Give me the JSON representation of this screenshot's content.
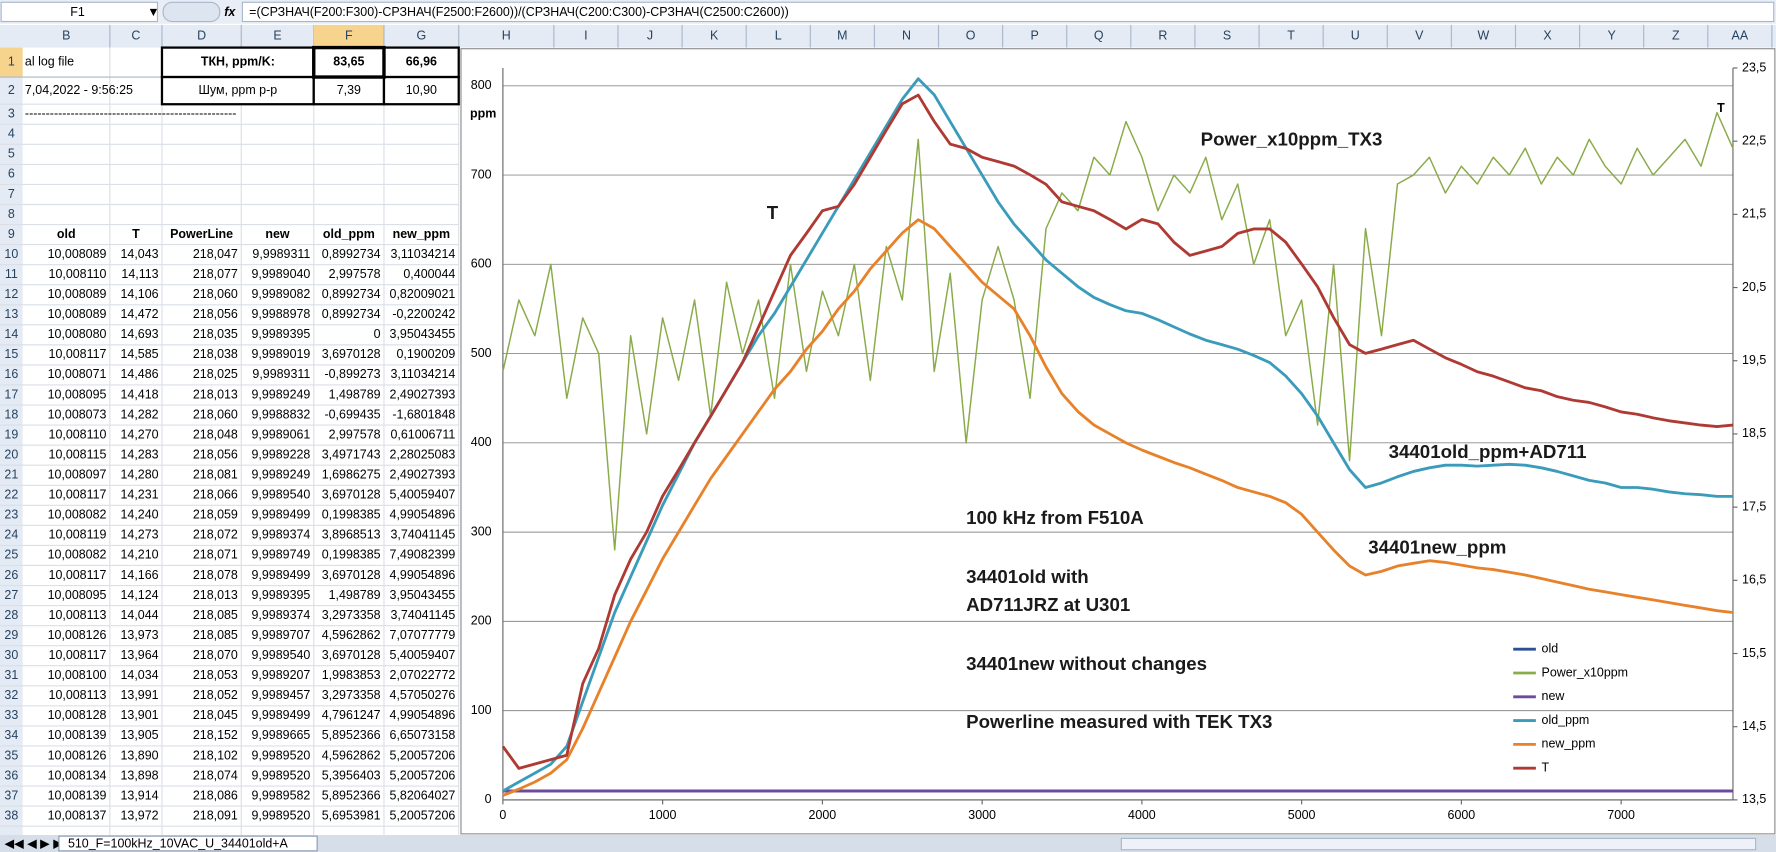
{
  "formula_bar": {
    "name_box": "F1",
    "formula": "=(СРЗНАЧ(F200:F300)-СРЗНАЧ(F2500:F2600))/(СРЗНАЧ(C200:C300)-СРЗНАЧ(C2500:C2600))"
  },
  "columns": [
    "B",
    "C",
    "D",
    "E",
    "F",
    "G",
    "H",
    "I",
    "J",
    "K",
    "L",
    "M",
    "N",
    "O",
    "P",
    "Q",
    "R",
    "S",
    "T",
    "U",
    "V",
    "W",
    "X",
    "Y",
    "Z",
    "AA"
  ],
  "row_numbers": [
    1,
    2,
    3,
    4,
    5,
    6,
    7,
    8,
    9,
    10,
    11,
    12,
    13,
    14,
    15,
    16,
    17,
    18,
    19,
    20,
    21,
    22,
    23,
    24,
    25,
    26,
    27,
    28,
    29,
    30,
    31,
    32,
    33,
    34,
    35,
    36,
    37,
    38
  ],
  "sheet": {
    "a1": "al log file",
    "a2": "7,04,2022 - 9:56:25",
    "a3": "---------------------------------------------------",
    "tkn_label": "ТКН, ppm/K:",
    "tkn": [
      "83,65",
      "66,96"
    ],
    "noise_label": "Шум, ppm p-p",
    "noise": [
      "7,39",
      "10,90"
    ],
    "headers": [
      "old",
      "T",
      "PowerLine",
      "new",
      "old_ppm",
      "new_ppm"
    ],
    "rows": [
      [
        "10,008089",
        "14,043",
        "218,047",
        "9,9989311",
        "0,8992734",
        "3,11034214"
      ],
      [
        "10,008110",
        "14,113",
        "218,077",
        "9,9989040",
        "2,997578",
        "0,400044"
      ],
      [
        "10,008089",
        "14,106",
        "218,060",
        "9,9989082",
        "0,8992734",
        "0,82009021"
      ],
      [
        "10,008089",
        "14,472",
        "218,056",
        "9,9988978",
        "0,8992734",
        "-0,2200242"
      ],
      [
        "10,008080",
        "14,693",
        "218,035",
        "9,9989395",
        "0",
        "3,95043455"
      ],
      [
        "10,008117",
        "14,585",
        "218,038",
        "9,9989019",
        "3,6970128",
        "0,1900209"
      ],
      [
        "10,008071",
        "14,486",
        "218,025",
        "9,9989311",
        "-0,899273",
        "3,11034214"
      ],
      [
        "10,008095",
        "14,418",
        "218,013",
        "9,9989249",
        "1,498789",
        "2,49027393"
      ],
      [
        "10,008073",
        "14,282",
        "218,060",
        "9,9988832",
        "-0,699435",
        "-1,6801848"
      ],
      [
        "10,008110",
        "14,270",
        "218,048",
        "9,9989061",
        "2,997578",
        "0,61006711"
      ],
      [
        "10,008115",
        "14,283",
        "218,056",
        "9,9989228",
        "3,4971743",
        "2,28025083"
      ],
      [
        "10,008097",
        "14,280",
        "218,081",
        "9,9989249",
        "1,6986275",
        "2,49027393"
      ],
      [
        "10,008117",
        "14,231",
        "218,066",
        "9,9989540",
        "3,6970128",
        "5,40059407"
      ],
      [
        "10,008082",
        "14,240",
        "218,059",
        "9,9989499",
        "0,1998385",
        "4,99054896"
      ],
      [
        "10,008119",
        "14,273",
        "218,072",
        "9,9989374",
        "3,8968513",
        "3,74041145"
      ],
      [
        "10,008082",
        "14,210",
        "218,071",
        "9,9989749",
        "0,1998385",
        "7,49082399"
      ],
      [
        "10,008117",
        "14,166",
        "218,078",
        "9,9989499",
        "3,6970128",
        "4,99054896"
      ],
      [
        "10,008095",
        "14,124",
        "218,013",
        "9,9989395",
        "1,498789",
        "3,95043455"
      ],
      [
        "10,008113",
        "14,044",
        "218,085",
        "9,9989374",
        "3,2973358",
        "3,74041145"
      ],
      [
        "10,008126",
        "13,973",
        "218,085",
        "9,9989707",
        "4,5962862",
        "7,07077779"
      ],
      [
        "10,008117",
        "13,964",
        "218,070",
        "9,9989540",
        "3,6970128",
        "5,40059407"
      ],
      [
        "10,008100",
        "14,034",
        "218,053",
        "9,9989207",
        "1,9983853",
        "2,07022772"
      ],
      [
        "10,008113",
        "13,991",
        "218,052",
        "9,9989457",
        "3,2973358",
        "4,57050276"
      ],
      [
        "10,008128",
        "13,901",
        "218,045",
        "9,9989499",
        "4,7961247",
        "4,99054896"
      ],
      [
        "10,008139",
        "13,905",
        "218,152",
        "9,9989665",
        "5,8952366",
        "6,65073158"
      ],
      [
        "10,008126",
        "13,890",
        "218,102",
        "9,9989520",
        "4,5962862",
        "5,20057206"
      ],
      [
        "10,008134",
        "13,898",
        "218,074",
        "9,9989520",
        "5,3956403",
        "5,20057206"
      ],
      [
        "10,008139",
        "13,914",
        "218,086",
        "9,9989582",
        "5,8952366",
        "5,82064027"
      ],
      [
        "10,008137",
        "13,972",
        "218,091",
        "9,9989520",
        "5,6953981",
        "5,20057206"
      ]
    ]
  },
  "sheet_tab": "510_F=100kHz_10VAC_U_34401old+A",
  "chart_data": {
    "type": "line",
    "y_label": "ppm",
    "y2_label": "T",
    "legend": "lower right",
    "grid": true,
    "annotations": [
      "Power_x10ppm_TX3",
      "T",
      "34401old_ppm+AD711",
      "34401new_ppm",
      "100 kHz from F510A",
      "34401old with",
      " AD711JRZ at U301",
      "34401new without changes",
      "Powerline measured with TEK TX3"
    ],
    "xlim": [
      0,
      7700
    ],
    "xticks": [
      0,
      1000,
      2000,
      3000,
      4000,
      5000,
      6000,
      7000
    ],
    "ylim": [
      0,
      820
    ],
    "yticks": [
      0,
      100,
      200,
      300,
      400,
      500,
      600,
      700,
      800
    ],
    "y2lim": [
      13.5,
      23.5
    ],
    "y2ticks": [
      {
        "value": 13.5,
        "label": "13,5"
      },
      {
        "value": 14.5,
        "label": "14,5"
      },
      {
        "value": 15.5,
        "label": "15,5"
      },
      {
        "value": 16.5,
        "label": "16,5"
      },
      {
        "value": 17.5,
        "label": "17,5"
      },
      {
        "value": 18.5,
        "label": "18,5"
      },
      {
        "value": 19.5,
        "label": "19,5"
      },
      {
        "value": 20.5,
        "label": "20,5"
      },
      {
        "value": 21.5,
        "label": "21,5"
      },
      {
        "value": 22.5,
        "label": "22,5"
      },
      {
        "value": 23.5,
        "label": "23,5"
      }
    ],
    "x": [
      0,
      100,
      200,
      300,
      400,
      500,
      600,
      700,
      800,
      900,
      1000,
      1100,
      1200,
      1300,
      1400,
      1500,
      1600,
      1700,
      1800,
      1900,
      2000,
      2100,
      2200,
      2300,
      2400,
      2500,
      2600,
      2700,
      2800,
      2900,
      3000,
      3100,
      3200,
      3300,
      3400,
      3500,
      3600,
      3700,
      3800,
      3900,
      4000,
      4100,
      4200,
      4300,
      4400,
      4500,
      4600,
      4700,
      4800,
      4900,
      5000,
      5100,
      5200,
      5300,
      5400,
      5500,
      5600,
      5700,
      5800,
      5900,
      6000,
      6100,
      6200,
      6300,
      6400,
      6500,
      6600,
      6700,
      6800,
      6900,
      7000,
      7100,
      7200,
      7300,
      7400,
      7500,
      7600,
      7700
    ],
    "series": [
      {
        "name": "old",
        "color": "#2f4f94",
        "values": [
          10,
          10,
          10,
          10,
          10,
          10,
          10,
          10,
          10,
          10,
          10,
          10,
          10,
          10,
          10,
          10,
          10,
          10,
          10,
          10,
          10,
          10,
          10,
          10,
          10,
          10,
          10,
          10,
          10,
          10,
          10,
          10,
          10,
          10,
          10,
          10,
          10,
          10,
          10,
          10,
          10,
          10,
          10,
          10,
          10,
          10,
          10,
          10,
          10,
          10,
          10,
          10,
          10,
          10,
          10,
          10,
          10,
          10,
          10,
          10,
          10,
          10,
          10,
          10,
          10,
          10,
          10,
          10,
          10,
          10,
          10,
          10,
          10,
          10,
          10,
          10,
          10,
          10
        ]
      },
      {
        "name": "Power_x10ppm",
        "color": "#8aab4a",
        "values": [
          480,
          560,
          520,
          600,
          450,
          540,
          500,
          280,
          520,
          410,
          540,
          470,
          560,
          430,
          580,
          500,
          560,
          450,
          600,
          480,
          570,
          520,
          600,
          470,
          620,
          560,
          740,
          480,
          590,
          400,
          560,
          620,
          560,
          450,
          640,
          680,
          660,
          720,
          700,
          760,
          720,
          660,
          700,
          680,
          720,
          650,
          690,
          600,
          650,
          520,
          560,
          420,
          600,
          380,
          640,
          520,
          690,
          700,
          720,
          680,
          710,
          690,
          720,
          700,
          730,
          690,
          720,
          700,
          740,
          710,
          690,
          730,
          700,
          720,
          740,
          710,
          770,
          730
        ]
      },
      {
        "name": "new",
        "color": "#6f4a9c",
        "values": [
          10,
          10,
          10,
          10,
          10,
          10,
          10,
          10,
          10,
          10,
          10,
          10,
          10,
          10,
          10,
          10,
          10,
          10,
          10,
          10,
          10,
          10,
          10,
          10,
          10,
          10,
          10,
          10,
          10,
          10,
          10,
          10,
          10,
          10,
          10,
          10,
          10,
          10,
          10,
          10,
          10,
          10,
          10,
          10,
          10,
          10,
          10,
          10,
          10,
          10,
          10,
          10,
          10,
          10,
          10,
          10,
          10,
          10,
          10,
          10,
          10,
          10,
          10,
          10,
          10,
          10,
          10,
          10,
          10,
          10,
          10,
          10,
          10,
          10,
          10,
          10,
          10,
          10
        ]
      },
      {
        "name": "old_ppm",
        "color": "#3a9bba",
        "values": [
          10,
          20,
          30,
          40,
          60,
          110,
          160,
          210,
          250,
          290,
          330,
          365,
          400,
          430,
          460,
          490,
          520,
          545,
          575,
          605,
          635,
          665,
          695,
          725,
          755,
          785,
          808,
          790,
          760,
          730,
          700,
          670,
          645,
          625,
          605,
          590,
          575,
          563,
          555,
          548,
          545,
          538,
          530,
          522,
          515,
          510,
          505,
          498,
          490,
          475,
          455,
          430,
          400,
          370,
          350,
          355,
          362,
          368,
          372,
          375,
          375,
          374,
          375,
          376,
          375,
          372,
          368,
          363,
          358,
          355,
          350,
          350,
          348,
          345,
          343,
          342,
          340,
          340
        ]
      },
      {
        "name": "new_ppm",
        "color": "#e8822a",
        "values": [
          5,
          12,
          20,
          30,
          45,
          80,
          120,
          160,
          200,
          235,
          270,
          300,
          330,
          360,
          385,
          410,
          435,
          460,
          480,
          505,
          525,
          550,
          570,
          595,
          615,
          635,
          650,
          640,
          620,
          600,
          580,
          565,
          550,
          520,
          485,
          455,
          435,
          420,
          410,
          400,
          392,
          385,
          378,
          372,
          365,
          358,
          350,
          345,
          340,
          333,
          320,
          300,
          280,
          262,
          252,
          256,
          262,
          265,
          268,
          266,
          263,
          260,
          258,
          255,
          252,
          248,
          244,
          240,
          236,
          233,
          230,
          227,
          224,
          221,
          218,
          215,
          212,
          210
        ]
      },
      {
        "name": "T",
        "color": "#ae3a33",
        "axis": "y2",
        "values": [
          14.23,
          13.93,
          13.99,
          14.05,
          14.11,
          15.09,
          15.57,
          16.3,
          16.79,
          17.16,
          17.65,
          18.01,
          18.38,
          18.74,
          19.11,
          19.48,
          19.96,
          20.45,
          20.94,
          21.24,
          21.55,
          21.61,
          21.91,
          22.28,
          22.65,
          23.01,
          23.13,
          22.77,
          22.46,
          22.4,
          22.28,
          22.22,
          22.16,
          22.04,
          21.91,
          21.67,
          21.61,
          21.55,
          21.43,
          21.3,
          21.43,
          21.37,
          21.12,
          20.94,
          21.0,
          21.06,
          21.24,
          21.3,
          21.3,
          21.12,
          20.82,
          20.51,
          20.09,
          19.72,
          19.6,
          19.66,
          19.72,
          19.78,
          19.66,
          19.54,
          19.45,
          19.35,
          19.29,
          19.21,
          19.13,
          19.09,
          19.01,
          18.96,
          18.93,
          18.87,
          18.8,
          18.77,
          18.72,
          18.68,
          18.65,
          18.62,
          18.6,
          18.62
        ]
      }
    ]
  }
}
